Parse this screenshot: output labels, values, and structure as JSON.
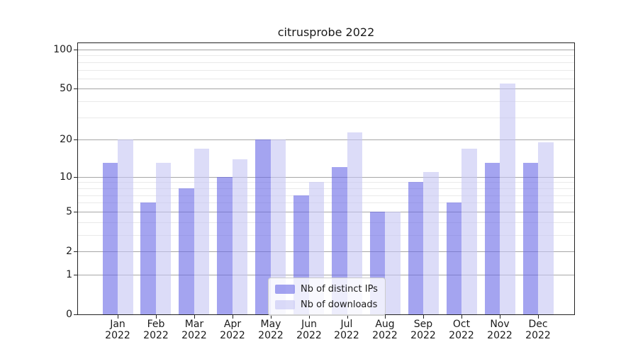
{
  "chart_data": {
    "type": "bar",
    "title": "citrusprobe 2022",
    "months": [
      "Jan",
      "Feb",
      "Mar",
      "Apr",
      "May",
      "Jun",
      "Jul",
      "Aug",
      "Sep",
      "Oct",
      "Nov",
      "Dec"
    ],
    "year": "2022",
    "series": [
      {
        "name": "Nb of distinct IPs",
        "color": "#6767E699",
        "values": [
          13,
          6,
          8,
          10,
          20,
          7,
          12,
          5,
          9,
          6,
          13,
          13
        ]
      },
      {
        "name": "Nb of downloads",
        "color": "#C5C5F399",
        "values": [
          20,
          13,
          17,
          14,
          20,
          9,
          23,
          5,
          11,
          17,
          55,
          19
        ]
      }
    ],
    "y_scale": "log1p",
    "ylim": [
      0,
      100
    ],
    "y_ticks_major": [
      0,
      1,
      2,
      5,
      10,
      20,
      50,
      100
    ],
    "y_ticks_minor": [
      3,
      4,
      6,
      7,
      8,
      9,
      30,
      40,
      60,
      70,
      80,
      90
    ],
    "grid": true,
    "legend_position": "lower center",
    "colors": {
      "grid_major": "#a6a6a6",
      "grid_minor": "#e9e9e9",
      "spine": "#222222",
      "text": "#1a1a1a"
    }
  }
}
